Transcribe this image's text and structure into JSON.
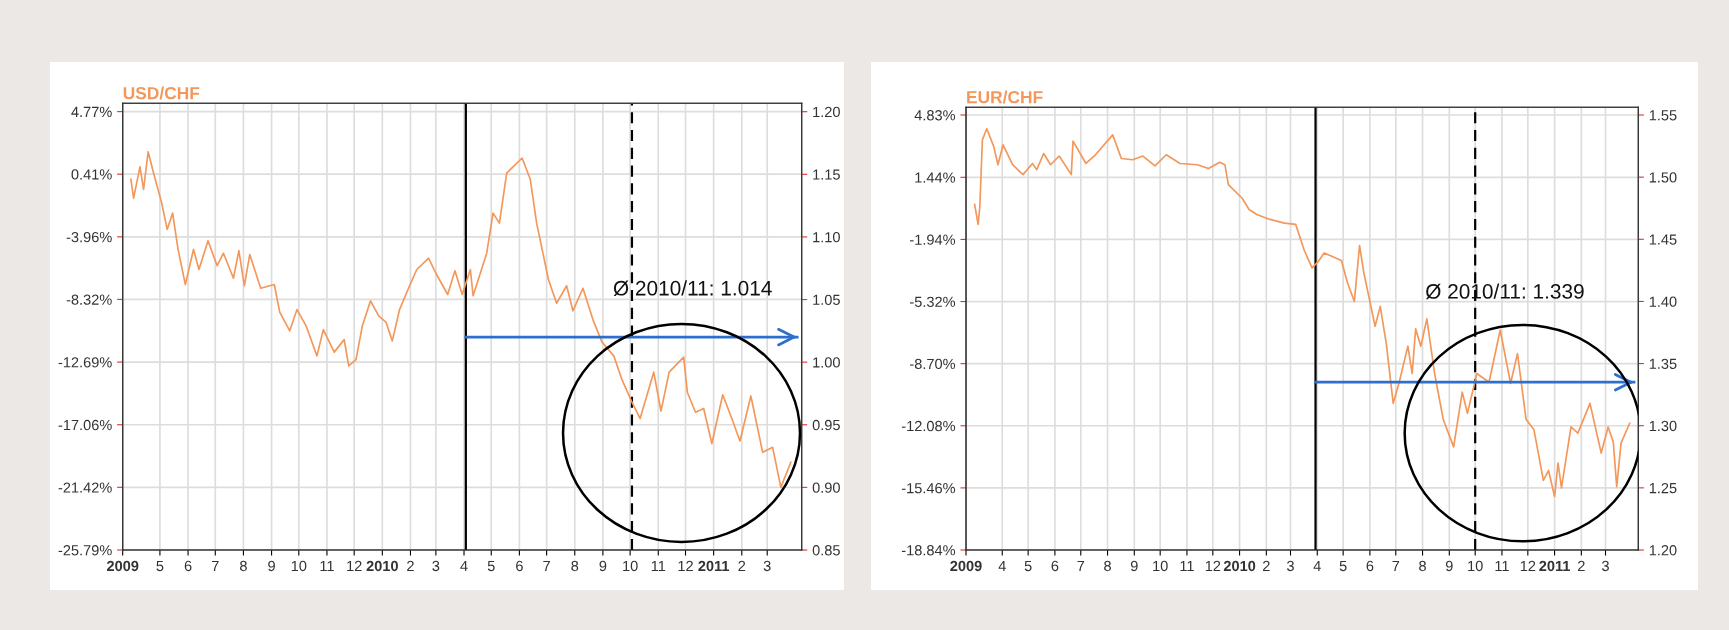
{
  "chart_data": [
    {
      "type": "line",
      "title": "USD/CHF",
      "xlim": [
        "2009-03-21",
        "2011-04-08"
      ],
      "ylim": [
        -25.79,
        5.35
      ],
      "y2lim": [
        0.85,
        1.2067
      ],
      "xticks": [
        {
          "value": "2009-03-21",
          "label": "2009"
        },
        {
          "value": "2009-05-01",
          "label": "5"
        },
        {
          "value": "2009-06-01",
          "label": "6"
        },
        {
          "value": "2009-07-01",
          "label": "7"
        },
        {
          "value": "2009-08-01",
          "label": "8"
        },
        {
          "value": "2009-09-01",
          "label": "9"
        },
        {
          "value": "2009-10-01",
          "label": "10"
        },
        {
          "value": "2009-11-01",
          "label": "11"
        },
        {
          "value": "2009-12-01",
          "label": "12"
        },
        {
          "value": "2010-01-01",
          "label": "2010"
        },
        {
          "value": "2010-02-01",
          "label": "2"
        },
        {
          "value": "2010-03-01",
          "label": "3"
        },
        {
          "value": "2010-04-01",
          "label": "4"
        },
        {
          "value": "2010-05-01",
          "label": "5"
        },
        {
          "value": "2010-06-01",
          "label": "6"
        },
        {
          "value": "2010-07-01",
          "label": "7"
        },
        {
          "value": "2010-08-01",
          "label": "8"
        },
        {
          "value": "2010-09-01",
          "label": "9"
        },
        {
          "value": "2010-10-01",
          "label": "10"
        },
        {
          "value": "2010-11-01",
          "label": "11"
        },
        {
          "value": "2010-12-01",
          "label": "12"
        },
        {
          "value": "2011-01-01",
          "label": "2011"
        },
        {
          "value": "2011-02-01",
          "label": "2"
        },
        {
          "value": "2011-03-01",
          "label": "3"
        }
      ],
      "yticks": [
        {
          "value": 4.77,
          "label": "4.77%"
        },
        {
          "value": 0.41,
          "label": "0.41%"
        },
        {
          "value": -3.96,
          "label": "-3.96%"
        },
        {
          "value": -8.32,
          "label": "-8.32%"
        },
        {
          "value": -12.69,
          "label": "-12.69%"
        },
        {
          "value": -17.06,
          "label": "-17.06%"
        },
        {
          "value": -21.42,
          "label": "-21.42%"
        },
        {
          "value": -25.79,
          "label": "-25.79%"
        }
      ],
      "y2ticks": [
        {
          "value": 0.85,
          "label": "0.85"
        },
        {
          "value": 0.9,
          "label": "0.90"
        },
        {
          "value": 0.95,
          "label": "0.95"
        },
        {
          "value": 1.0,
          "label": "1.00"
        },
        {
          "value": 1.05,
          "label": "1.05"
        },
        {
          "value": 1.1,
          "label": "1.10"
        },
        {
          "value": 1.15,
          "label": "1.15"
        },
        {
          "value": 1.2,
          "label": "1.20"
        }
      ],
      "grid": true,
      "series": [
        {
          "axis": "y2",
          "color": "#f4975a",
          "x": [
            "2009-03-30",
            "2009-04-02",
            "2009-04-09",
            "2009-04-13",
            "2009-04-18",
            "2009-04-24",
            "2009-05-03",
            "2009-05-09",
            "2009-05-15",
            "2009-05-21",
            "2009-05-29",
            "2009-06-07",
            "2009-06-13",
            "2009-06-23",
            "2009-07-03",
            "2009-07-10",
            "2009-07-21",
            "2009-07-27",
            "2009-08-02",
            "2009-08-08",
            "2009-08-20",
            "2009-09-04",
            "2009-09-10",
            "2009-09-21",
            "2009-09-29",
            "2009-10-09",
            "2009-10-21",
            "2009-10-28",
            "2009-11-09",
            "2009-11-20",
            "2009-11-25",
            "2009-12-03",
            "2009-12-10",
            "2009-12-19",
            "2009-12-28",
            "2010-01-05",
            "2010-01-12",
            "2010-01-20",
            "2010-01-31",
            "2010-02-08",
            "2010-02-21",
            "2010-03-01",
            "2010-03-14",
            "2010-03-22",
            "2010-03-30",
            "2010-04-08",
            "2010-04-11",
            "2010-04-26",
            "2010-05-03",
            "2010-05-10",
            "2010-05-18",
            "2010-06-04",
            "2010-06-13",
            "2010-06-20",
            "2010-07-03",
            "2010-07-12",
            "2010-07-23",
            "2010-07-30",
            "2010-08-10",
            "2010-08-21",
            "2010-08-31",
            "2010-09-13",
            "2010-09-22",
            "2010-10-03",
            "2010-10-12",
            "2010-10-27",
            "2010-11-04",
            "2010-11-13",
            "2010-11-29",
            "2010-12-03",
            "2010-12-12",
            "2010-12-21",
            "2010-12-30",
            "2011-01-11",
            "2011-01-21",
            "2011-01-30",
            "2011-02-11",
            "2011-02-24",
            "2011-03-07",
            "2011-03-16",
            "2011-03-27"
          ],
          "values": [
            1.146,
            1.131,
            1.156,
            1.138,
            1.168,
            1.151,
            1.127,
            1.106,
            1.119,
            1.09,
            1.062,
            1.09,
            1.074,
            1.097,
            1.077,
            1.087,
            1.067,
            1.089,
            1.061,
            1.086,
            1.059,
            1.062,
            1.04,
            1.025,
            1.042,
            1.029,
            1.005,
            1.026,
            1.008,
            1.018,
            0.997,
            1.002,
            1.029,
            1.049,
            1.037,
            1.032,
            1.017,
            1.042,
            1.061,
            1.074,
            1.083,
            1.071,
            1.054,
            1.073,
            1.054,
            1.074,
            1.053,
            1.087,
            1.119,
            1.111,
            1.151,
            1.163,
            1.146,
            1.111,
            1.066,
            1.047,
            1.061,
            1.041,
            1.059,
            1.034,
            1.016,
            1.005,
            0.986,
            0.968,
            0.955,
            0.992,
            0.961,
            0.992,
            1.004,
            0.976,
            0.96,
            0.963,
            0.935,
            0.974,
            0.955,
            0.937,
            0.973,
            0.928,
            0.932,
            0.9,
            0.92
          ]
        },
        {
          "axis": "y2",
          "color": "#2f6fcc",
          "x": [
            "2010-04-03",
            "2011-04-03"
          ],
          "values": [
            1.02,
            1.02
          ]
        }
      ],
      "ref_lines": [
        {
          "axis": "x",
          "value": "2010-04-03",
          "color": "#000000",
          "line_style": "solid"
        },
        {
          "axis": "x",
          "value": "2010-10-03",
          "color": "#000000",
          "line_style": "dashed"
        }
      ],
      "annotations": [
        "Ø 2010/11: 1.014"
      ]
    },
    {
      "type": "line",
      "title": "EUR/CHF",
      "xlim": [
        "2009-02-18",
        "2011-04-08"
      ],
      "ylim": [
        -18.84,
        5.25
      ],
      "y2lim": [
        1.2,
        1.5562
      ],
      "xticks": [
        {
          "value": "2009-02-18",
          "label": "2009"
        },
        {
          "value": "2009-04-01",
          "label": "4"
        },
        {
          "value": "2009-05-01",
          "label": "5"
        },
        {
          "value": "2009-06-01",
          "label": "6"
        },
        {
          "value": "2009-07-01",
          "label": "7"
        },
        {
          "value": "2009-08-01",
          "label": "8"
        },
        {
          "value": "2009-09-01",
          "label": "9"
        },
        {
          "value": "2009-10-01",
          "label": "10"
        },
        {
          "value": "2009-11-01",
          "label": "11"
        },
        {
          "value": "2009-12-01",
          "label": "12"
        },
        {
          "value": "2010-01-01",
          "label": "2010"
        },
        {
          "value": "2010-02-01",
          "label": "2"
        },
        {
          "value": "2010-03-01",
          "label": "3"
        },
        {
          "value": "2010-04-01",
          "label": "4"
        },
        {
          "value": "2010-05-01",
          "label": "5"
        },
        {
          "value": "2010-06-01",
          "label": "6"
        },
        {
          "value": "2010-07-01",
          "label": "7"
        },
        {
          "value": "2010-08-01",
          "label": "8"
        },
        {
          "value": "2010-09-01",
          "label": "9"
        },
        {
          "value": "2010-10-01",
          "label": "10"
        },
        {
          "value": "2010-11-01",
          "label": "11"
        },
        {
          "value": "2010-12-01",
          "label": "12"
        },
        {
          "value": "2011-01-01",
          "label": "2011"
        },
        {
          "value": "2011-02-01",
          "label": "2"
        },
        {
          "value": "2011-03-01",
          "label": "3"
        }
      ],
      "yticks": [
        {
          "value": 4.83,
          "label": "4.83%"
        },
        {
          "value": 1.44,
          "label": "1.44%"
        },
        {
          "value": -1.94,
          "label": "-1.94%"
        },
        {
          "value": -5.32,
          "label": "-5.32%"
        },
        {
          "value": -8.7,
          "label": "-8.70%"
        },
        {
          "value": -12.08,
          "label": "-12.08%"
        },
        {
          "value": -15.46,
          "label": "-15.46%"
        },
        {
          "value": -18.84,
          "label": "-18.84%"
        }
      ],
      "y2ticks": [
        {
          "value": 1.2,
          "label": "1.20"
        },
        {
          "value": 1.25,
          "label": "1.25"
        },
        {
          "value": 1.3,
          "label": "1.30"
        },
        {
          "value": 1.35,
          "label": "1.35"
        },
        {
          "value": 1.4,
          "label": "1.40"
        },
        {
          "value": 1.45,
          "label": "1.45"
        },
        {
          "value": 1.5,
          "label": "1.50"
        },
        {
          "value": 1.55,
          "label": "1.55"
        }
      ],
      "grid": true,
      "series": [
        {
          "axis": "y2",
          "color": "#f4975a",
          "x": [
            "2009-02-28",
            "2009-03-04",
            "2009-03-06",
            "2009-03-09",
            "2009-03-14",
            "2009-03-22",
            "2009-03-27",
            "2009-04-02",
            "2009-04-13",
            "2009-04-25",
            "2009-05-06",
            "2009-05-11",
            "2009-05-19",
            "2009-05-27",
            "2009-06-06",
            "2009-06-20",
            "2009-06-22",
            "2009-07-07",
            "2009-07-18",
            "2009-08-07",
            "2009-08-17",
            "2009-08-30",
            "2009-09-11",
            "2009-09-25",
            "2009-10-08",
            "2009-10-24",
            "2009-11-13",
            "2009-11-26",
            "2009-12-09",
            "2009-12-15",
            "2009-12-19",
            "2010-01-04",
            "2010-01-12",
            "2010-01-21",
            "2010-02-05",
            "2010-02-22",
            "2010-03-07",
            "2010-03-17",
            "2010-03-26",
            "2010-04-02",
            "2010-04-09",
            "2010-04-29",
            "2010-05-06",
            "2010-05-14",
            "2010-05-20",
            "2010-05-25",
            "2010-06-07",
            "2010-06-13",
            "2010-06-20",
            "2010-06-28",
            "2010-07-05",
            "2010-07-15",
            "2010-07-20",
            "2010-07-24",
            "2010-07-30",
            "2010-08-06",
            "2010-08-15",
            "2010-08-25",
            "2010-09-06",
            "2010-09-16",
            "2010-09-22",
            "2010-10-03",
            "2010-10-17",
            "2010-10-30",
            "2010-11-11",
            "2010-11-19",
            "2010-11-29",
            "2010-12-08",
            "2010-12-19",
            "2010-12-25",
            "2011-01-01",
            "2011-01-05",
            "2011-01-09",
            "2011-01-20",
            "2011-01-28",
            "2011-02-11",
            "2011-02-24",
            "2011-03-04",
            "2011-03-10",
            "2011-03-14",
            "2011-03-19",
            "2011-03-29"
          ],
          "values": [
            1.478,
            1.462,
            1.476,
            1.53,
            1.539,
            1.525,
            1.51,
            1.526,
            1.51,
            1.502,
            1.511,
            1.506,
            1.519,
            1.51,
            1.517,
            1.502,
            1.529,
            1.511,
            1.518,
            1.534,
            1.515,
            1.514,
            1.517,
            1.509,
            1.518,
            1.511,
            1.51,
            1.507,
            1.512,
            1.51,
            1.494,
            1.483,
            1.474,
            1.47,
            1.466,
            1.463,
            1.462,
            1.441,
            1.427,
            1.432,
            1.439,
            1.433,
            1.415,
            1.4,
            1.445,
            1.423,
            1.38,
            1.396,
            1.366,
            1.318,
            1.335,
            1.364,
            1.342,
            1.378,
            1.364,
            1.386,
            1.342,
            1.305,
            1.283,
            1.327,
            1.31,
            1.342,
            1.335,
            1.377,
            1.334,
            1.358,
            1.305,
            1.297,
            1.256,
            1.264,
            1.243,
            1.27,
            1.25,
            1.299,
            1.294,
            1.318,
            1.278,
            1.299,
            1.287,
            1.251,
            1.286,
            1.302
          ]
        },
        {
          "axis": "y2",
          "color": "#2f6fcc",
          "x": [
            "2010-03-30",
            "2011-04-03"
          ],
          "values": [
            1.335,
            1.335
          ]
        }
      ],
      "ref_lines": [
        {
          "axis": "x",
          "value": "2010-03-30",
          "color": "#000000",
          "line_style": "solid"
        },
        {
          "axis": "x",
          "value": "2010-10-01",
          "color": "#000000",
          "line_style": "dashed"
        }
      ],
      "annotations": [
        "Ø 2010/11: 1.339"
      ]
    }
  ]
}
